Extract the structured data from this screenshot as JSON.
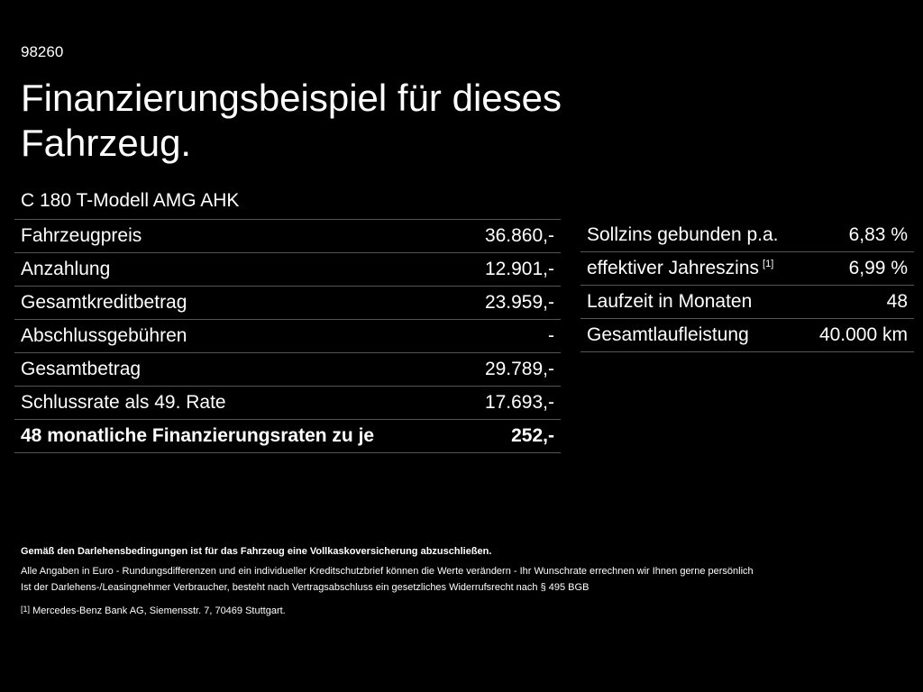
{
  "code": "98260",
  "title": "Finanzierungsbeispiel für dieses Fahrzeug.",
  "model": "C 180 T-Modell AMG AHK",
  "left_table": {
    "rows": [
      [
        "Fahrzeugpreis",
        "36.860,-"
      ],
      [
        "Anzahlung",
        "12.901,-"
      ],
      [
        "Gesamtkreditbetrag",
        "23.959,-"
      ],
      [
        "Abschlussgebühren",
        "-"
      ],
      [
        "Gesamtbetrag",
        "29.789,-"
      ],
      [
        "Schlussrate als 49. Rate",
        "17.693,-"
      ],
      [
        "48 monatliche Finanzierungsraten zu je",
        "252,-"
      ]
    ]
  },
  "right_table": {
    "rows": [
      {
        "label": "Sollzins gebunden p.a.",
        "value": "6,83 %"
      },
      {
        "label": "effektiver Jahreszins",
        "note": "[1]",
        "value": "6,99 %"
      },
      {
        "label": "Laufzeit in Monaten",
        "value": "48"
      },
      {
        "label": "Gesamtlaufleistung",
        "value": "40.000 km"
      }
    ]
  },
  "footer": {
    "notice": "Gemäß den Darlehensbedingungen ist für das Fahrzeug eine Vollkaskoversicherung abzuschließen.",
    "lines": [
      "Alle Angaben in Euro - Rundungsdifferenzen und ein individueller Kreditschutzbrief können die Werte verändern - Ihr Wunschrate errechnen wir Ihnen gerne persönlich",
      "Ist der Darlehens-/Leasingnehmer Verbraucher, besteht nach Vertragsabschluss ein gesetzliches Widerrufsrecht nach § 495 BGB"
    ],
    "footnote": {
      "marker": "[1]",
      "text": "Mercedes-Benz Bank AG, Siemensstr. 7, 70469 Stuttgart."
    }
  }
}
